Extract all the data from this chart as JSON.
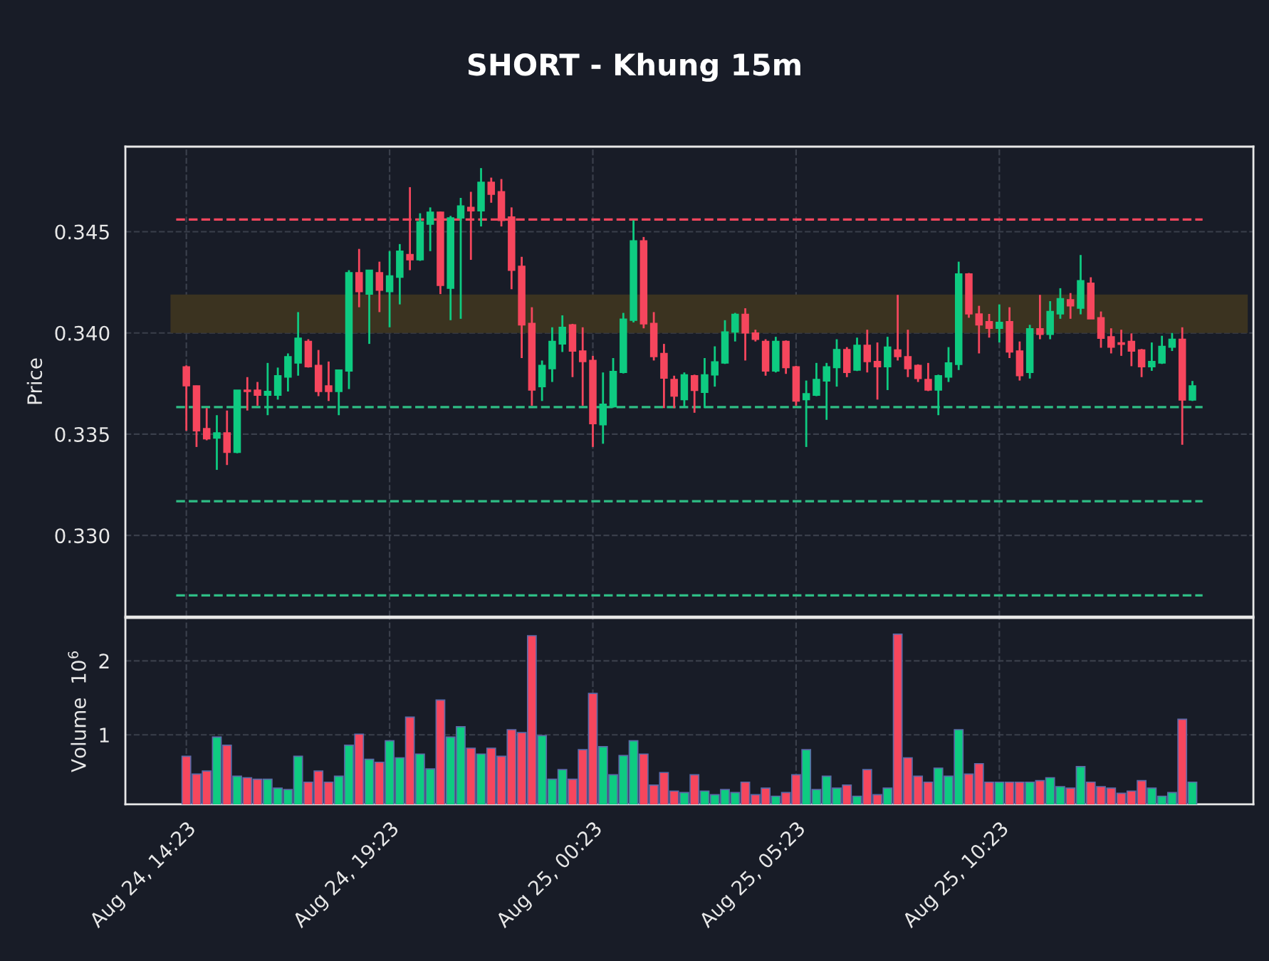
{
  "chart_data": [
    {
      "type": "candlestick",
      "title": "SHORT - Khung 15m",
      "ylabel": "Price",
      "ohlc": [
        [
          0.33833,
          0.3384,
          0.33517,
          0.33739
        ],
        [
          0.33739,
          0.3374,
          0.33437,
          0.33517
        ],
        [
          0.33528,
          0.33629,
          0.3347,
          0.33477
        ],
        [
          0.33481,
          0.33594,
          0.33324,
          0.33507
        ],
        [
          0.33507,
          0.33617,
          0.33348,
          0.33411
        ],
        [
          0.33411,
          0.33718,
          0.33406,
          0.33718
        ],
        [
          0.33718,
          0.33782,
          0.33617,
          0.33711
        ],
        [
          0.33718,
          0.33758,
          0.33641,
          0.33693
        ],
        [
          0.33693,
          0.33852,
          0.33594,
          0.33711
        ],
        [
          0.33693,
          0.33829,
          0.33671,
          0.33789
        ],
        [
          0.33782,
          0.33899,
          0.33711,
          0.33883
        ],
        [
          0.33852,
          0.34103,
          0.33789,
          0.33974
        ],
        [
          0.33958,
          0.33969,
          0.33829,
          0.33833
        ],
        [
          0.3384,
          0.33916,
          0.33688,
          0.33711
        ],
        [
          0.33739,
          0.33859,
          0.33664,
          0.33711
        ],
        [
          0.33711,
          0.33817,
          0.33594,
          0.33817
        ],
        [
          0.33812,
          0.3431,
          0.33723,
          0.34298
        ],
        [
          0.34298,
          0.34415,
          0.34127,
          0.34204
        ],
        [
          0.34192,
          0.3431,
          0.33946,
          0.3431
        ],
        [
          0.34298,
          0.34352,
          0.34103,
          0.34211
        ],
        [
          0.34204,
          0.34404,
          0.34028,
          0.34282
        ],
        [
          0.34275,
          0.34439,
          0.34141,
          0.34404
        ],
        [
          0.34387,
          0.3472,
          0.3431,
          0.34361
        ],
        [
          0.34361,
          0.34591,
          0.34356,
          0.34549
        ],
        [
          0.34537,
          0.3462,
          0.34404,
          0.34596
        ],
        [
          0.34596,
          0.34599,
          0.34192,
          0.34235
        ],
        [
          0.34221,
          0.34578,
          0.34063,
          0.34568
        ],
        [
          0.34568,
          0.34667,
          0.3407,
          0.34627
        ],
        [
          0.3462,
          0.34697,
          0.34361,
          0.34603
        ],
        [
          0.34603,
          0.34814,
          0.34526,
          0.34744
        ],
        [
          0.34744,
          0.34767,
          0.34643,
          0.34685
        ],
        [
          0.34697,
          0.3476,
          0.34526,
          0.34556
        ],
        [
          0.34573,
          0.3462,
          0.34216,
          0.3431
        ],
        [
          0.34329,
          0.34376,
          0.33876,
          0.3404
        ],
        [
          0.34047,
          0.34127,
          0.33641,
          0.33718
        ],
        [
          0.33735,
          0.33864,
          0.33664,
          0.3384
        ],
        [
          0.33824,
          0.34028,
          0.33758,
          0.33958
        ],
        [
          0.33946,
          0.34087,
          0.33906,
          0.34028
        ],
        [
          0.3404,
          0.34045,
          0.33782,
          0.33911
        ],
        [
          0.33911,
          0.34028,
          0.33641,
          0.33859
        ],
        [
          0.33864,
          0.33887,
          0.33437,
          0.33552
        ],
        [
          0.33547,
          0.33805,
          0.33453,
          0.33648
        ],
        [
          0.33636,
          0.33876,
          0.33631,
          0.3381
        ],
        [
          0.33805,
          0.34099,
          0.338,
          0.34068
        ],
        [
          0.34063,
          0.34556,
          0.34052,
          0.34455
        ],
        [
          0.34455,
          0.34474,
          0.34023,
          0.34045
        ],
        [
          0.34047,
          0.34103,
          0.33864,
          0.33883
        ],
        [
          0.33899,
          0.33946,
          0.33629,
          0.33777
        ],
        [
          0.3377,
          0.33789,
          0.33629,
          0.33688
        ],
        [
          0.33671,
          0.33805,
          0.33636,
          0.33793
        ],
        [
          0.33789,
          0.33794,
          0.33606,
          0.33716
        ],
        [
          0.33707,
          0.33876,
          0.33629,
          0.33793
        ],
        [
          0.33793,
          0.33934,
          0.33735,
          0.33857
        ],
        [
          0.33852,
          0.34063,
          0.33847,
          0.34005
        ],
        [
          0.34005,
          0.34099,
          0.33958,
          0.34092
        ],
        [
          0.34092,
          0.34122,
          0.33864,
          0.34
        ],
        [
          0.34,
          0.34016,
          0.33958,
          0.33969
        ],
        [
          0.33958,
          0.33969,
          0.33789,
          0.33812
        ],
        [
          0.33812,
          0.33981,
          0.33805,
          0.33958
        ],
        [
          0.33958,
          0.33963,
          0.33798,
          0.33829
        ],
        [
          0.33833,
          0.33838,
          0.33641,
          0.33664
        ],
        [
          0.33671,
          0.33765,
          0.33437,
          0.337
        ],
        [
          0.33693,
          0.33852,
          0.33688,
          0.3377
        ],
        [
          0.33763,
          0.33852,
          0.33571,
          0.33833
        ],
        [
          0.33829,
          0.33969,
          0.33735,
          0.33918
        ],
        [
          0.33918,
          0.3393,
          0.33782,
          0.33805
        ],
        [
          0.33817,
          0.33977,
          0.33812,
          0.33939
        ],
        [
          0.33939,
          0.34016,
          0.33805,
          0.33859
        ],
        [
          0.33859,
          0.33953,
          0.33671,
          0.33833
        ],
        [
          0.33833,
          0.33981,
          0.33718,
          0.3393
        ],
        [
          0.33916,
          0.34188,
          0.33864,
          0.33883
        ],
        [
          0.33883,
          0.34016,
          0.33782,
          0.33824
        ],
        [
          0.3384,
          0.33845,
          0.33758,
          0.33775
        ],
        [
          0.3377,
          0.33852,
          0.33713,
          0.33718
        ],
        [
          0.33718,
          0.33794,
          0.33594,
          0.33789
        ],
        [
          0.33782,
          0.3393,
          0.33758,
          0.33852
        ],
        [
          0.33845,
          0.34352,
          0.33817,
          0.34291
        ],
        [
          0.34291,
          0.34296,
          0.34075,
          0.34094
        ],
        [
          0.34094,
          0.34134,
          0.33899,
          0.3404
        ],
        [
          0.34056,
          0.34094,
          0.33977,
          0.34023
        ],
        [
          0.34023,
          0.34141,
          0.33953,
          0.34052
        ],
        [
          0.34056,
          0.34127,
          0.33876,
          0.33906
        ],
        [
          0.33911,
          0.33958,
          0.33765,
          0.33789
        ],
        [
          0.33805,
          0.3404,
          0.33775,
          0.34021
        ],
        [
          0.34021,
          0.34188,
          0.33969,
          0.33993
        ],
        [
          0.33993,
          0.34157,
          0.33969,
          0.34106
        ],
        [
          0.34094,
          0.34221,
          0.3407,
          0.34169
        ],
        [
          0.34164,
          0.34197,
          0.3407,
          0.34134
        ],
        [
          0.34122,
          0.34385,
          0.34092,
          0.34258
        ],
        [
          0.34246,
          0.34275,
          0.3407,
          0.3407
        ],
        [
          0.34075,
          0.34106,
          0.33927,
          0.33974
        ],
        [
          0.33981,
          0.34023,
          0.33899,
          0.3393
        ],
        [
          0.33951,
          0.34016,
          0.33887,
          0.33944
        ],
        [
          0.33958,
          0.33998,
          0.33836,
          0.33911
        ],
        [
          0.33916,
          0.33921,
          0.33782,
          0.33833
        ],
        [
          0.33833,
          0.33953,
          0.33813,
          0.33859
        ],
        [
          0.33852,
          0.33986,
          0.33847,
          0.33934
        ],
        [
          0.3393,
          0.34,
          0.33911,
          0.33969
        ],
        [
          0.33969,
          0.34028,
          0.33448,
          0.33669
        ],
        [
          0.33669,
          0.33763,
          0.33664,
          0.33739
        ]
      ],
      "ylim": [
        0.326,
        0.3492
      ],
      "yticks": [
        {
          "value": 0.33,
          "label": "0.330"
        },
        {
          "value": 0.335,
          "label": "0.335"
        },
        {
          "value": 0.34,
          "label": "0.340"
        },
        {
          "value": 0.345,
          "label": "0.345"
        }
      ],
      "ref_lines": [
        {
          "axis": "y",
          "value": 0.3456,
          "label": null,
          "color": "#f6465d",
          "line_style": "dashed"
        },
        {
          "axis": "y",
          "value": 0.33634,
          "label": null,
          "color": "#2ebd85",
          "line_style": "dashed"
        },
        {
          "axis": "y",
          "value": 0.33169,
          "label": null,
          "color": "#2ebd85",
          "line_style": "dashed"
        },
        {
          "axis": "y",
          "value": 0.32704,
          "label": null,
          "color": "#2ebd85",
          "line_style": "dashed"
        }
      ],
      "bands": [
        {
          "axis": "y",
          "from": 0.34,
          "to": 0.3419,
          "label": null,
          "color": "#3b3320"
        }
      ],
      "grid": true,
      "tick_labels": "y"
    },
    {
      "type": "bar",
      "ylabel": "Volume  10$^{6}$",
      "categories": [
        "Aug 24, 14:23",
        null,
        null,
        null,
        null,
        null,
        null,
        null,
        null,
        null,
        null,
        null,
        null,
        null,
        null,
        null,
        null,
        null,
        null,
        null,
        "Aug 24, 19:23",
        null,
        null,
        null,
        null,
        null,
        null,
        null,
        null,
        null,
        null,
        null,
        null,
        null,
        null,
        null,
        null,
        null,
        null,
        null,
        "Aug 25, 00:23",
        null,
        null,
        null,
        null,
        null,
        null,
        null,
        null,
        null,
        null,
        null,
        null,
        null,
        null,
        null,
        null,
        null,
        null,
        null,
        "Aug 25, 05:23",
        null,
        null,
        null,
        null,
        null,
        null,
        null,
        null,
        null,
        null,
        null,
        null,
        null,
        null,
        null,
        null,
        null,
        null,
        null,
        "Aug 25, 10:23",
        null,
        null,
        null,
        null,
        null,
        null,
        null,
        null,
        null,
        null,
        null,
        null,
        null,
        null,
        null,
        null,
        null,
        null,
        null
      ],
      "values": [
        0.71,
        0.47,
        0.51,
        0.97,
        0.86,
        0.44,
        0.42,
        0.4,
        0.4,
        0.28,
        0.26,
        0.71,
        0.36,
        0.51,
        0.36,
        0.44,
        0.86,
        1.01,
        0.67,
        0.63,
        0.92,
        0.69,
        1.24,
        0.74,
        0.54,
        1.47,
        0.97,
        1.11,
        0.82,
        0.74,
        0.82,
        0.71,
        1.07,
        1.03,
        2.34,
        0.99,
        0.4,
        0.53,
        0.4,
        0.8,
        1.56,
        0.84,
        0.46,
        0.72,
        0.92,
        0.74,
        0.32,
        0.49,
        0.24,
        0.22,
        0.46,
        0.24,
        0.19,
        0.26,
        0.22,
        0.36,
        0.19,
        0.28,
        0.17,
        0.22,
        0.46,
        0.8,
        0.26,
        0.44,
        0.28,
        0.32,
        0.17,
        0.53,
        0.19,
        0.28,
        2.36,
        0.69,
        0.44,
        0.36,
        0.55,
        0.44,
        1.07,
        0.47,
        0.61,
        0.36,
        0.36,
        0.36,
        0.36,
        0.36,
        0.38,
        0.42,
        0.3,
        0.28,
        0.57,
        0.36,
        0.3,
        0.28,
        0.21,
        0.24,
        0.38,
        0.28,
        0.17,
        0.22,
        1.21,
        0.36
      ],
      "ylim": [
        0.06,
        2.58
      ],
      "yticks": [
        1,
        2
      ],
      "grid": true,
      "tick_labels": "xy"
    }
  ]
}
